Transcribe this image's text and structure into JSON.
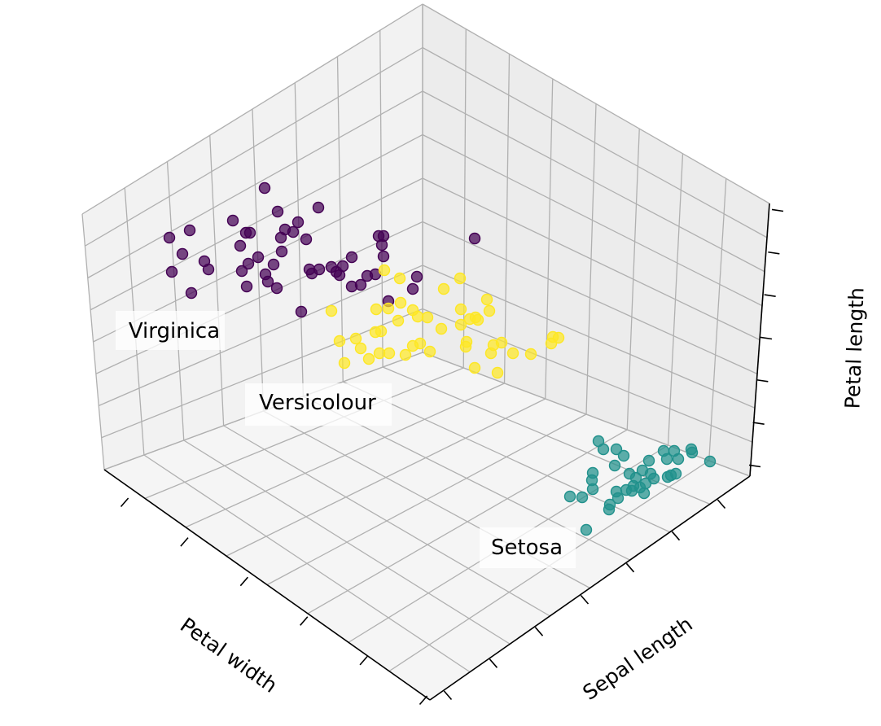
{
  "chart_data": {
    "type": "scatter",
    "projection": "3d",
    "xlabel": "Petal width",
    "ylabel": "Sepal length",
    "zlabel": "Petal length",
    "tick_labels_shown": false,
    "grid": true,
    "legend": "none",
    "clusters": [
      {
        "label": "Virginica",
        "color": "#440154",
        "points": [
          [
            208,
            292
          ],
          [
            233,
            283
          ],
          [
            224,
            312
          ],
          [
            211,
            334
          ],
          [
            251,
            321
          ],
          [
            256,
            331
          ],
          [
            235,
            360
          ],
          [
            286,
            271
          ],
          [
            302,
            286
          ],
          [
            307,
            286
          ],
          [
            295,
            302
          ],
          [
            305,
            324
          ],
          [
            297,
            333
          ],
          [
            317,
            316
          ],
          [
            325,
            231
          ],
          [
            341,
            260
          ],
          [
            350,
            282
          ],
          [
            360,
            285
          ],
          [
            345,
            292
          ],
          [
            346,
            309
          ],
          [
            366,
            273
          ],
          [
            376,
            294
          ],
          [
            336,
            325
          ],
          [
            326,
            337
          ],
          [
            329,
            346
          ],
          [
            303,
            352
          ],
          [
            340,
            354
          ],
          [
            380,
            331
          ],
          [
            383,
            336
          ],
          [
            391,
            255
          ],
          [
            392,
            331
          ],
          [
            407,
            328
          ],
          [
            413,
            334
          ],
          [
            421,
            327
          ],
          [
            432,
            316
          ],
          [
            417,
            338
          ],
          [
            370,
            383
          ],
          [
            432,
            352
          ],
          [
            443,
            350
          ],
          [
            451,
            339
          ],
          [
            461,
            337
          ],
          [
            471,
            315
          ],
          [
            469,
            301
          ],
          [
            465,
            290
          ],
          [
            471,
            290
          ],
          [
            512,
            340
          ],
          [
            507,
            355
          ],
          [
            477,
            370
          ],
          [
            583,
            293
          ]
        ]
      },
      {
        "label": "Versicolour",
        "color": "#fde725",
        "points": [
          [
            407,
            382
          ],
          [
            417,
            419
          ],
          [
            423,
            446
          ],
          [
            437,
            416
          ],
          [
            443,
            428
          ],
          [
            453,
            441
          ],
          [
            461,
            408
          ],
          [
            468,
            407
          ],
          [
            466,
            434
          ],
          [
            462,
            380
          ],
          [
            477,
            379
          ],
          [
            478,
            434
          ],
          [
            489,
            394
          ],
          [
            491,
            342
          ],
          [
            492,
            372
          ],
          [
            472,
            332
          ],
          [
            498,
            436
          ],
          [
            507,
            425
          ],
          [
            507,
            381
          ],
          [
            513,
            389
          ],
          [
            516,
            422
          ],
          [
            525,
            390
          ],
          [
            528,
            432
          ],
          [
            542,
            404
          ],
          [
            545,
            355
          ],
          [
            565,
            342
          ],
          [
            566,
            380
          ],
          [
            566,
            399
          ],
          [
            573,
            420
          ],
          [
            572,
            426
          ],
          [
            577,
            392
          ],
          [
            583,
            452
          ],
          [
            584,
            390
          ],
          [
            587,
            393
          ],
          [
            598,
            368
          ],
          [
            601,
            382
          ],
          [
            603,
            434
          ],
          [
            606,
            424
          ],
          [
            611,
            458
          ],
          [
            616,
            421
          ],
          [
            630,
            434
          ],
          [
            652,
            435
          ],
          [
            679,
            414
          ],
          [
            686,
            415
          ],
          [
            677,
            422
          ]
        ]
      },
      {
        "label": "Setosa",
        "color": "#21918c",
        "points": [
          [
            720,
            651
          ],
          [
            735,
            542
          ],
          [
            741,
            552
          ],
          [
            755,
            572
          ],
          [
            757,
            552
          ],
          [
            766,
            560
          ],
          [
            728,
            581
          ],
          [
            727,
            590
          ],
          [
            728,
            601
          ],
          [
            715,
            611
          ],
          [
            700,
            610
          ],
          [
            749,
            620
          ],
          [
            748,
            626
          ],
          [
            757,
            604
          ],
          [
            759,
            612
          ],
          [
            769,
            602
          ],
          [
            773,
            582
          ],
          [
            776,
            603
          ],
          [
            778,
            597
          ],
          [
            781,
            587
          ],
          [
            786,
            599
          ],
          [
            789,
            578
          ],
          [
            793,
            594
          ],
          [
            791,
            606
          ],
          [
            797,
            566
          ],
          [
            799,
            582
          ],
          [
            803,
            588
          ],
          [
            815,
            554
          ],
          [
            819,
            564
          ],
          [
            820,
            586
          ],
          [
            824,
            584
          ],
          [
            828,
            554
          ],
          [
            833,
            564
          ],
          [
            830,
            582
          ],
          [
            849,
            552
          ],
          [
            850,
            556
          ],
          [
            872,
            567
          ]
        ]
      }
    ]
  }
}
